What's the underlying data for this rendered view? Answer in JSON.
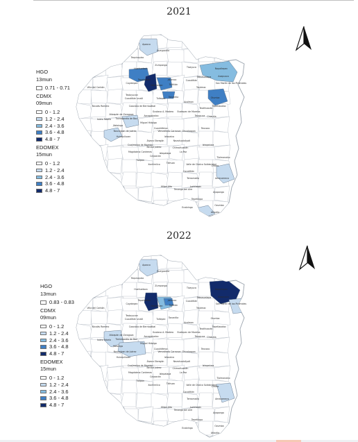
{
  "maps": [
    {
      "year": "2021",
      "legend": {
        "groups": [
          {
            "state": "HGO",
            "layer": "13mun",
            "classes": [
              {
                "range": "0.71 - 0.71",
                "color": "#ffffff"
              }
            ]
          },
          {
            "state": "CDMX",
            "layer": "09mun",
            "classes": [
              {
                "range": "0 - 1.2",
                "color": "#ffffff"
              },
              {
                "range": "1.2 - 2.4",
                "color": "#c6dbef"
              },
              {
                "range": "2.4 - 3.6",
                "color": "#85bce0"
              },
              {
                "range": "3.6 - 4.8",
                "color": "#3f7fc4"
              },
              {
                "range": "4.8 - 7",
                "color": "#122b6b"
              }
            ]
          },
          {
            "state": "EDOMEX",
            "layer": "15mun",
            "classes": [
              {
                "range": "0 - 1.2",
                "color": "#ffffff"
              },
              {
                "range": "1.2 - 2.4",
                "color": "#c6dbef"
              },
              {
                "range": "2.4 - 3.6",
                "color": "#85bce0"
              },
              {
                "range": "3.6 - 4.8",
                "color": "#3f7fc4"
              },
              {
                "range": "4.8 - 7",
                "color": "#122b6b"
              }
            ]
          }
        ]
      },
      "municipalities": [
        "Apaxco",
        "Hueypoxtla",
        "Tequixquiac",
        "Zumpango",
        "Huehuetoca",
        "Tizayuca",
        "Temascalapa",
        "Nopaltepec",
        "Axapusco",
        "San Martín de las Pirámides",
        "Cuautitlán",
        "Tultitlán",
        "Tultepec",
        "Coyotepec",
        "Teoloyucan",
        "Tepotzotlán",
        "Jaltenco",
        "Nextlalpan",
        "Tecámac",
        "Tonanitla",
        "Acolman",
        "Otumba",
        "Villa del Carbón",
        "Nicolás Romero",
        "Cuautitlán Izcalli",
        "Coacalco de Berriozábal",
        "Ecatepec de Morelos",
        "Atizapán de Zaragoza",
        "Tlalnepantla de Baz",
        "Isidro Fabela",
        "Jilotzingo",
        "Naucalpan de Juárez",
        "Huixquilucan",
        "Gustavo A. Madero",
        "Azcapotzalco",
        "Miguel Hidalgo",
        "Cuauhtémoc",
        "Venustiano Carranza",
        "Cuajimalpa de Morelos",
        "Álvaro Obregón",
        "Benito Juárez",
        "Iztacalco",
        "Nezahualcóyotl",
        "Chimalhuacán",
        "Texcoco",
        "Chiautla",
        "Tepetlaoxtoc",
        "Teotihuacán",
        "Tezoyuca",
        "Chicoloapan",
        "La Paz",
        "Ixtapaluca",
        "Iztapalapa",
        "Coyoacán",
        "Magdalena Contreras",
        "Tlalpan",
        "Xochimilco",
        "Tláhuac",
        "Valle de Chalco Solidaridad",
        "Chalco",
        "Tlalmanalco",
        "Cocotitlán",
        "Temamatla",
        "Amecameca",
        "Juchitepec",
        "Tenango del Aire",
        "Ayapango",
        "Tepetlixpa",
        "Ozumba",
        "Atlautla",
        "Ecatzingo",
        "Milpa Alta"
      ]
    },
    {
      "year": "2022",
      "legend": {
        "groups": [
          {
            "state": "HGO",
            "layer": "13mun",
            "classes": [
              {
                "range": "0.83 - 0.83",
                "color": "#ffffff"
              }
            ]
          },
          {
            "state": "CDMX",
            "layer": "09mun",
            "classes": [
              {
                "range": "0 - 1.2",
                "color": "#ffffff"
              },
              {
                "range": "1.2 - 2.4",
                "color": "#c6dbef"
              },
              {
                "range": "2.4 - 3.6",
                "color": "#85bce0"
              },
              {
                "range": "3.6 - 4.8",
                "color": "#3f7fc4"
              },
              {
                "range": "4.8 - 7",
                "color": "#122b6b"
              }
            ]
          },
          {
            "state": "EDOMEX",
            "layer": "15mun",
            "classes": [
              {
                "range": "0 - 1.2",
                "color": "#ffffff"
              },
              {
                "range": "1.2 - 2.4",
                "color": "#c6dbef"
              },
              {
                "range": "2.4 - 3.6",
                "color": "#85bce0"
              },
              {
                "range": "3.6 - 4.8",
                "color": "#3f7fc4"
              },
              {
                "range": "4.8 - 7",
                "color": "#122b6b"
              }
            ]
          }
        ]
      },
      "municipalities": [
        "Apaxco",
        "Hueypoxtla",
        "Tequixquiac",
        "Zumpango",
        "Huehuetoca",
        "Tizayuca",
        "Temascalapa",
        "Nopaltepec",
        "Axapusco",
        "San Martín de las Pirámides",
        "Cuautitlán",
        "Tultitlán",
        "Tultepec",
        "Coyotepec",
        "Teoloyucan",
        "Tepotzotlán",
        "Jaltenco",
        "Nextlalpan",
        "Tecámac",
        "Tonanitla",
        "Acolman",
        "Otumba",
        "Villa del Carbón",
        "Nicolás Romero",
        "Cuautitlán Izcalli",
        "Coacalco de Berriozábal",
        "Ecatepec de Morelos",
        "Atizapán de Zaragoza",
        "Tlalnepantla de Baz",
        "Isidro Fabela",
        "Jilotzingo",
        "Naucalpan de Juárez",
        "Huixquilucan",
        "Gustavo A. Madero",
        "Azcapotzalco",
        "Miguel Hidalgo",
        "Cuauhtémoc",
        "Venustiano Carranza",
        "Cuajimalpa de Morelos",
        "Álvaro Obregón",
        "Benito Juárez",
        "Iztacalco",
        "Nezahualcóyotl",
        "Chimalhuacán",
        "Texcoco",
        "Chiautla",
        "Tepetlaoxtoc",
        "Teotihuacán",
        "Tezoyuca",
        "Chicoloapan",
        "La Paz",
        "Ixtapaluca",
        "Iztapalapa",
        "Coyoacán",
        "Magdalena Contreras",
        "Tlalpan",
        "Xochimilco",
        "Tláhuac",
        "Valle de Chalco Solidaridad",
        "Chalco",
        "Tlalmanalco",
        "Cocotitlán",
        "Temamatla",
        "Amecameca",
        "Juchitepec",
        "Tenango del Aire",
        "Ayapango",
        "Tepetlixpa",
        "Ozumba",
        "Atlautla",
        "Ecatzingo",
        "Milpa Alta"
      ]
    }
  ]
}
